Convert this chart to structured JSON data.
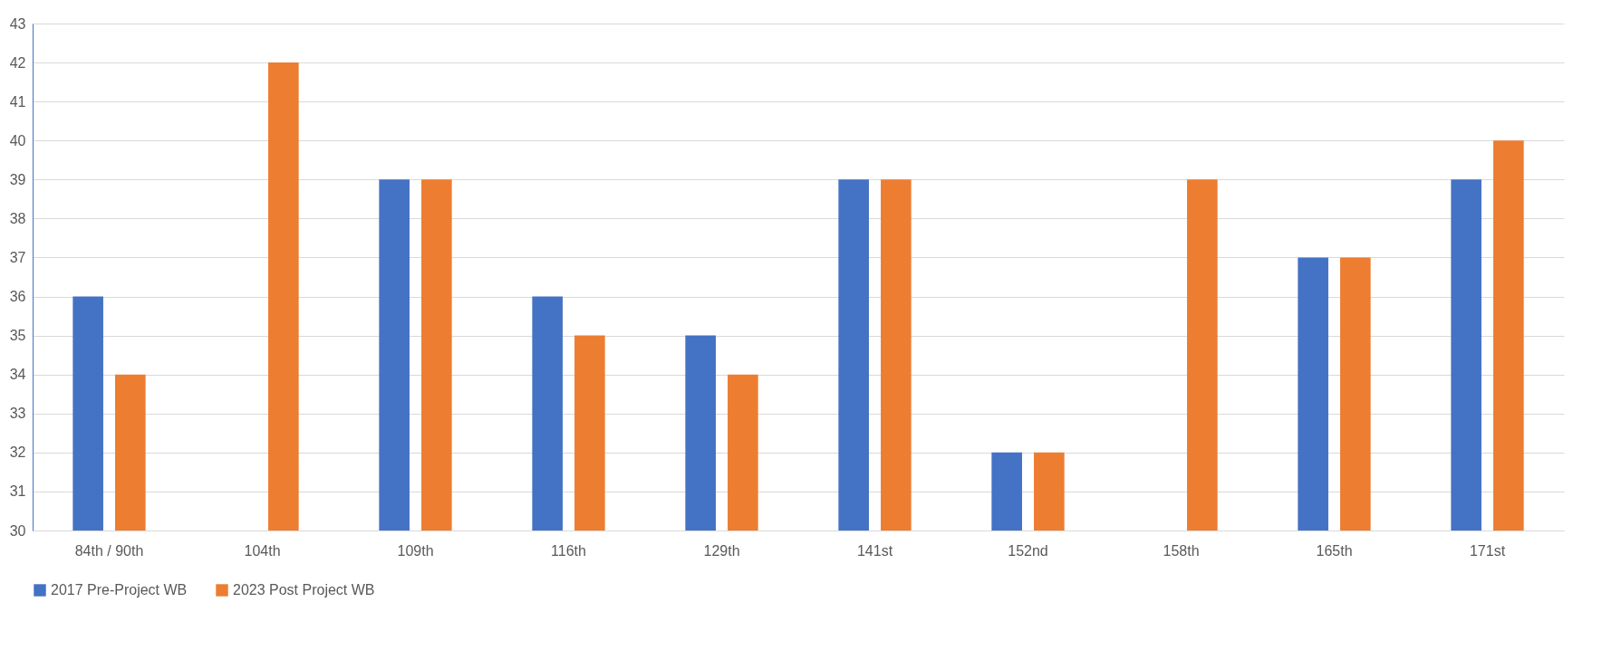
{
  "chart_data": {
    "type": "bar",
    "categories": [
      "84th / 90th",
      "104th",
      "109th",
      "116th",
      "129th",
      "141st",
      "152nd",
      "158th",
      "165th",
      "171st"
    ],
    "series": [
      {
        "name": "2017 Pre-Project WB",
        "color": "#4472c4",
        "values": [
          36,
          null,
          39,
          36,
          35,
          39,
          32,
          null,
          37,
          39
        ]
      },
      {
        "name": "2023 Post Project WB",
        "color": "#ed7d31",
        "values": [
          34,
          42,
          39,
          35,
          34,
          39,
          32,
          39,
          37,
          40
        ]
      }
    ],
    "ylim": [
      30,
      43
    ],
    "yticks": [
      30,
      31,
      32,
      33,
      34,
      35,
      36,
      37,
      38,
      39,
      40,
      41,
      42,
      43
    ],
    "grid": "y",
    "legend": "bottom"
  }
}
